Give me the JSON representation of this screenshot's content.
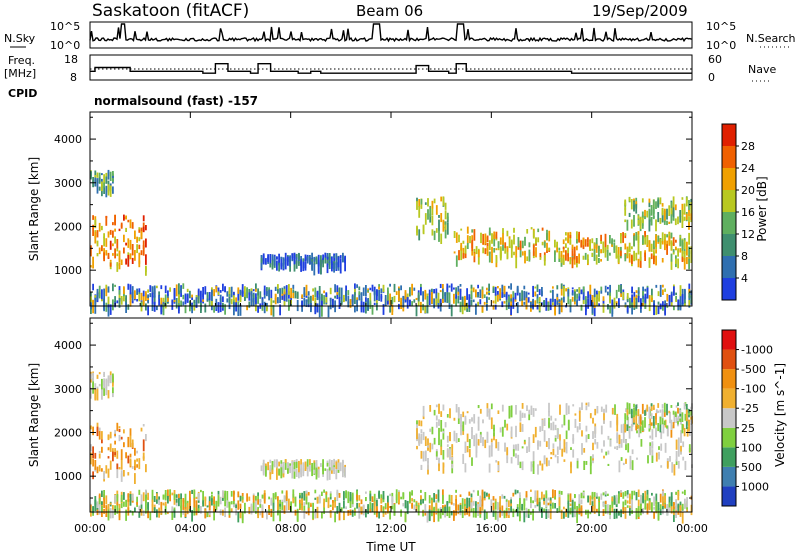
{
  "header": {
    "station": "Saskatoon (fitACF)",
    "beam": "Beam 06",
    "date": "19/Sep/2009"
  },
  "nsky_panel": {
    "left_label": "N.Sky",
    "left_ticks": [
      "10^5",
      "10^0"
    ],
    "right_ticks": [
      "10^5",
      "10^0"
    ],
    "right_label": "N.Search"
  },
  "freq_panel": {
    "left_label_line1": "Freq.",
    "left_label_line2": "[MHz]",
    "left_ticks": [
      "18",
      "8"
    ],
    "right_ticks": [
      "60",
      "0"
    ],
    "right_label": "Nave",
    "cpid_label": "CPID",
    "cpid_name": "normalsound (fast) -157"
  },
  "x_axis": {
    "tick_labels": [
      "00:00",
      "04:00",
      "08:00",
      "12:00",
      "16:00",
      "20:00",
      "00:00"
    ],
    "label": "Time UT"
  },
  "chart_data": [
    {
      "type": "heatmap",
      "name": "power-panel",
      "ylabel": "Slant Range [km]",
      "ylim": [
        180,
        4620
      ],
      "y_ticks": [
        1000,
        2000,
        3000,
        4000
      ],
      "xlim_hours": [
        0,
        24
      ],
      "colorbar": {
        "label": "Power [dB]",
        "tick_labels": [
          "4",
          "8",
          "12",
          "16",
          "20",
          "24",
          "28"
        ],
        "colors": [
          "#1f3fe0",
          "#2f6fb0",
          "#3f8f6f",
          "#5faf5f",
          "#b8c820",
          "#f0a000",
          "#f06000",
          "#e02000"
        ]
      },
      "features": [
        {
          "t0": 0.0,
          "t1": 2.2,
          "r0": 1050,
          "r1": 2300,
          "level": "orange-red"
        },
        {
          "t0": 0.0,
          "t1": 0.9,
          "r0": 2900,
          "r1": 3300,
          "level": "green"
        },
        {
          "t0": 6.8,
          "t1": 10.2,
          "r0": 1150,
          "r1": 1400,
          "level": "blue"
        },
        {
          "t0": 13.0,
          "t1": 14.3,
          "r0": 1800,
          "r1": 2700,
          "level": "yellow"
        },
        {
          "t0": 14.5,
          "t1": 18.3,
          "r0": 1300,
          "r1": 2000,
          "level": "orange"
        },
        {
          "t0": 18.5,
          "t1": 24.0,
          "r0": 1250,
          "r1": 1900,
          "level": "orange"
        },
        {
          "t0": 21.3,
          "t1": 24.0,
          "r0": 2100,
          "r1": 2700,
          "level": "yellow"
        },
        {
          "t0": 0.0,
          "t1": 24.0,
          "r0": 180,
          "r1": 700,
          "level": "mixed"
        }
      ]
    },
    {
      "type": "heatmap",
      "name": "velocity-panel",
      "ylabel": "Slant Range [km]",
      "ylim": [
        180,
        4620
      ],
      "y_ticks": [
        1000,
        2000,
        3000,
        4000
      ],
      "xlim_hours": [
        0,
        24
      ],
      "colorbar": {
        "label": "Velocity [m s^-1]",
        "tick_labels": [
          "1000",
          "500",
          "100",
          "25",
          "-25",
          "-100",
          "-500",
          "-1000"
        ],
        "colors": [
          "#2040c0",
          "#3f7fb0",
          "#3f9f5f",
          "#7fcf3f",
          "#c8c8c8",
          "#f0b030",
          "#f09010",
          "#e05010",
          "#e01010"
        ]
      },
      "features": [
        {
          "t0": 0.0,
          "t1": 2.2,
          "r0": 1050,
          "r1": 2300,
          "level": "orange"
        },
        {
          "t0": 0.0,
          "t1": 0.9,
          "r0": 2900,
          "r1": 3400,
          "level": "grey"
        },
        {
          "t0": 6.8,
          "t1": 10.2,
          "r0": 1150,
          "r1": 1400,
          "level": "grey"
        },
        {
          "t0": 13.0,
          "t1": 24.0,
          "r0": 1250,
          "r1": 2700,
          "level": "grey"
        },
        {
          "t0": 21.3,
          "t1": 24.0,
          "r0": 2100,
          "r1": 2700,
          "level": "orange-green"
        },
        {
          "t0": 0.0,
          "t1": 24.0,
          "r0": 180,
          "r1": 700,
          "level": "green-orange"
        }
      ]
    }
  ]
}
